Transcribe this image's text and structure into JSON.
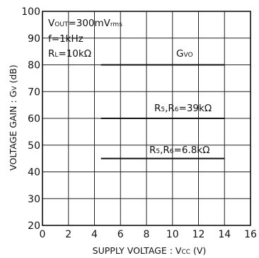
{
  "chart_data": {
    "type": "line",
    "title": "",
    "xlabel": "SUPPLY VOLTAGE : V CC (V)",
    "ylabel": "VOLTAGE GAIN : Gv (dB)",
    "xlim": [
      0,
      16
    ],
    "ylim": [
      20,
      100
    ],
    "x_ticks": [
      0,
      2,
      4,
      6,
      8,
      10,
      12,
      14,
      16
    ],
    "y_ticks": [
      20,
      30,
      40,
      50,
      60,
      70,
      80,
      90,
      100
    ],
    "grid": true,
    "conditions": {
      "vout": "VOUT=300mVrms",
      "freq": "f=1kHz",
      "rl": "RL=10kΩ"
    },
    "series": [
      {
        "name": "GVO",
        "x": [
          4.5,
          14
        ],
        "y": [
          80,
          80
        ]
      },
      {
        "name": "R5,R6=39kΩ",
        "x": [
          4.5,
          14
        ],
        "y": [
          60,
          60
        ]
      },
      {
        "name": "R5,R6=6.8kΩ",
        "x": [
          4.5,
          14
        ],
        "y": [
          45,
          45
        ]
      }
    ]
  }
}
